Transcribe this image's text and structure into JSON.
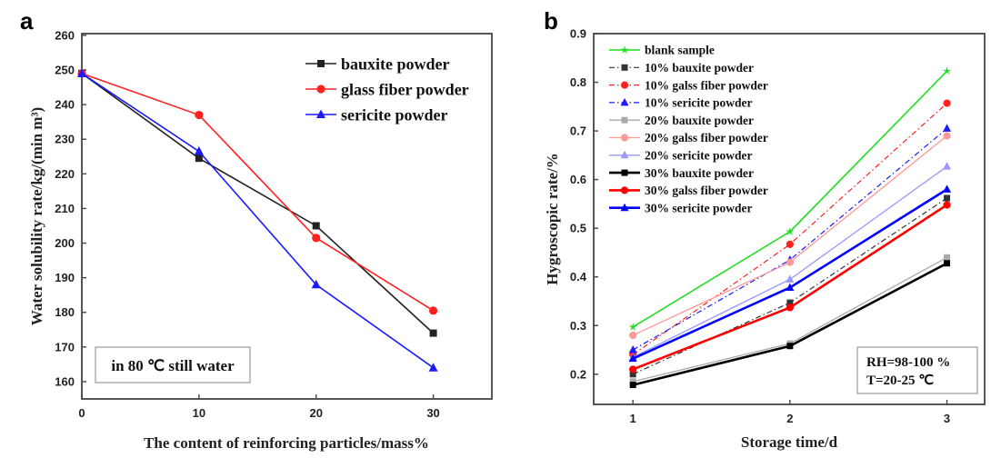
{
  "chart_data": [
    {
      "panel_label": "a",
      "type": "line",
      "xlabel": "The content of reinforcing particles/mass%",
      "ylabel": "Water solubility rate/kg/(min m³)",
      "xlim": [
        0,
        35
      ],
      "ylim": [
        155,
        260.5
      ],
      "xticks": [
        0,
        10,
        20,
        30
      ],
      "yticks": [
        160,
        170,
        180,
        190,
        200,
        210,
        220,
        230,
        240,
        250,
        260
      ],
      "grid": false,
      "legend_position": "top-right",
      "annotation": "in 80 ℃ still water",
      "x": [
        0,
        10,
        20,
        30
      ],
      "series": [
        {
          "name": "bauxite powder",
          "color": "#222222",
          "marker": "square",
          "style": "solid",
          "values": [
            249,
            224.5,
            205,
            174
          ]
        },
        {
          "name": "glass fiber powder",
          "color": "#ff2020",
          "marker": "circle",
          "style": "solid",
          "values": [
            249,
            237,
            201.5,
            180.5
          ]
        },
        {
          "name": "sericite powder",
          "color": "#1a1aff",
          "marker": "triangle",
          "style": "solid",
          "values": [
            249,
            226.5,
            188,
            164
          ]
        }
      ]
    },
    {
      "panel_label": "b",
      "type": "line",
      "xlabel": "Storage time/d",
      "ylabel": "Hygroscopic rate/%",
      "xlim": [
        0.75,
        3.24
      ],
      "ylim": [
        0.138,
        0.9
      ],
      "xticks": [
        1,
        2,
        3
      ],
      "yticks": [
        0.2,
        0.3,
        0.4,
        0.5,
        0.6,
        0.7,
        0.8,
        0.9
      ],
      "grid": false,
      "legend_position": "top-left",
      "annotation": [
        "RH=98-100 %",
        "T=20-25 ℃"
      ],
      "x": [
        1,
        2,
        3
      ],
      "series": [
        {
          "name": "blank sample",
          "color": "#22dd22",
          "marker": "star",
          "style": "solid",
          "values": [
            0.297,
            0.493,
            0.823
          ]
        },
        {
          "name": "10% bauxite powder",
          "color": "#333333",
          "marker": "square",
          "style": "dashdot",
          "values": [
            0.2,
            0.347,
            0.562
          ]
        },
        {
          "name": "10% galss fiber powder",
          "color": "#ff2020",
          "marker": "circle",
          "style": "dashdot",
          "values": [
            0.24,
            0.467,
            0.757
          ]
        },
        {
          "name": "10% sericite powder",
          "color": "#1a1aff",
          "marker": "triangle",
          "style": "dashdot",
          "values": [
            0.25,
            0.435,
            0.705
          ]
        },
        {
          "name": "20% bauxite powder",
          "color": "#aaaaaa",
          "marker": "square",
          "style": "light",
          "values": [
            0.185,
            0.263,
            0.44
          ]
        },
        {
          "name": "20% galss fiber powder",
          "color": "#ff9999",
          "marker": "circle",
          "style": "light",
          "values": [
            0.28,
            0.43,
            0.69
          ]
        },
        {
          "name": "20% sericite powder",
          "color": "#9999ff",
          "marker": "triangle",
          "style": "light",
          "values": [
            0.235,
            0.395,
            0.627
          ]
        },
        {
          "name": "30% bauxite powder",
          "color": "#000000",
          "marker": "square",
          "style": "bold",
          "values": [
            0.178,
            0.258,
            0.428
          ]
        },
        {
          "name": "30% galss fiber powder",
          "color": "#ff0000",
          "marker": "circle",
          "style": "bold",
          "values": [
            0.21,
            0.337,
            0.548
          ]
        },
        {
          "name": "30% sericite powder",
          "color": "#0000ff",
          "marker": "triangle",
          "style": "bold",
          "values": [
            0.232,
            0.378,
            0.58
          ]
        }
      ]
    }
  ]
}
